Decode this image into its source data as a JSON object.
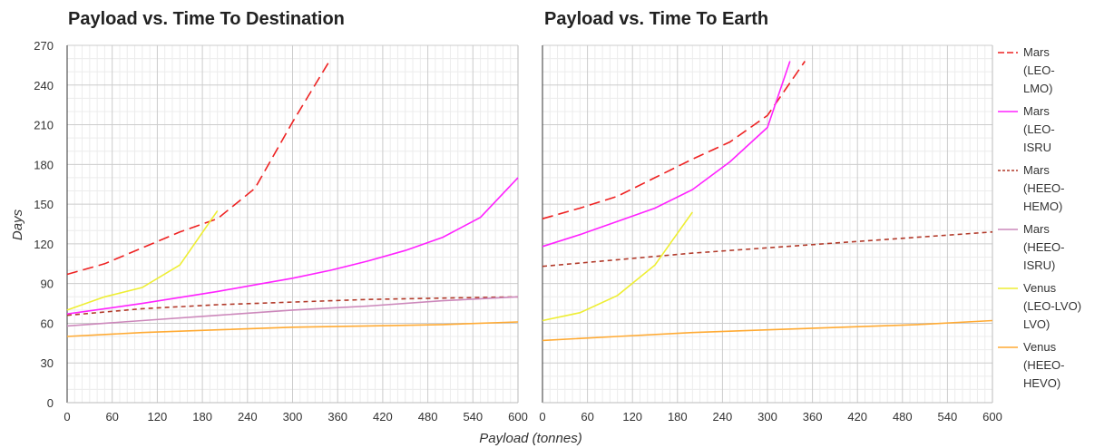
{
  "chart_data": [
    {
      "type": "line",
      "title": "Payload vs. Time To Destination",
      "xlabel": "Payload (tonnes)",
      "ylabel": "Days",
      "xlim": [
        0,
        600
      ],
      "ylim": [
        0,
        270
      ],
      "xticks": [
        "0",
        "60",
        "120",
        "180",
        "240",
        "300",
        "360",
        "420",
        "480",
        "540",
        "600"
      ],
      "yticks": [
        "0",
        "30",
        "60",
        "90",
        "120",
        "150",
        "180",
        "210",
        "240",
        "270"
      ],
      "grid": true,
      "series": [
        {
          "name": "Mars (LEO-LMO)",
          "color": "#ee2222",
          "dash": "long-dash",
          "x": [
            0,
            50,
            100,
            150,
            200,
            250,
            300,
            350
          ],
          "y": [
            97,
            105,
            117,
            129,
            139,
            162,
            212,
            259
          ]
        },
        {
          "name": "Mars (LEO-ISRU",
          "color": "#ff22ff",
          "dash": "solid",
          "x": [
            0,
            100,
            200,
            250,
            300,
            350,
            400,
            450,
            500,
            550,
            600
          ],
          "y": [
            67,
            75,
            84,
            89,
            94,
            100,
            107,
            115,
            125,
            140,
            170
          ]
        },
        {
          "name": "Mars (HEEO-HEMO)",
          "color": "#b23a2a",
          "dash": "short-dash",
          "x": [
            0,
            100,
            200,
            300,
            400,
            500,
            600
          ],
          "y": [
            66,
            71,
            74,
            76,
            78,
            79,
            80
          ]
        },
        {
          "name": "Mars (HEEO-ISRU)",
          "color": "#cc88bb",
          "dash": "solid",
          "x": [
            0,
            100,
            200,
            300,
            400,
            500,
            600
          ],
          "y": [
            58,
            62,
            66,
            70,
            73,
            77,
            80
          ]
        },
        {
          "name": "Venus (LEO-LVO) LVO)",
          "color": "#eeee33",
          "dash": "solid",
          "x": [
            0,
            50,
            100,
            150,
            200
          ],
          "y": [
            70,
            80,
            87,
            104,
            145
          ]
        },
        {
          "name": "Venus (HEEO-HEVO)",
          "color": "#ffaa33",
          "dash": "solid",
          "x": [
            0,
            100,
            200,
            300,
            400,
            500,
            600
          ],
          "y": [
            50,
            53,
            55,
            57,
            58,
            59,
            61
          ]
        }
      ]
    },
    {
      "type": "line",
      "title": "Payload vs. Time To Earth",
      "xlabel": "Payload (tonnes)",
      "ylabel": "",
      "xlim": [
        0,
        600
      ],
      "ylim": [
        0,
        270
      ],
      "xticks": [
        "0",
        "60",
        "120",
        "180",
        "240",
        "300",
        "360",
        "420",
        "480",
        "540",
        "600"
      ],
      "grid": true,
      "series": [
        {
          "name": "Mars (LEO-LMO)",
          "color": "#ee2222",
          "dash": "long-dash",
          "x": [
            0,
            50,
            100,
            150,
            200,
            250,
            300,
            350
          ],
          "y": [
            139,
            147,
            156,
            170,
            184,
            197,
            217,
            258
          ]
        },
        {
          "name": "Mars (LEO-ISRU",
          "color": "#ff22ff",
          "dash": "solid",
          "x": [
            0,
            50,
            100,
            150,
            200,
            250,
            300,
            330
          ],
          "y": [
            118,
            127,
            137,
            147,
            161,
            182,
            208,
            258
          ]
        },
        {
          "name": "Mars (HEEO-HEMO)",
          "color": "#b23a2a",
          "dash": "short-dash",
          "x": [
            0,
            100,
            200,
            300,
            400,
            500,
            600
          ],
          "y": [
            103,
            108,
            113,
            117,
            121,
            125,
            129
          ]
        },
        {
          "name": "Venus (LEO-LVO) LVO)",
          "color": "#eeee33",
          "dash": "solid",
          "x": [
            0,
            50,
            100,
            150,
            200
          ],
          "y": [
            62,
            68,
            81,
            104,
            144
          ]
        },
        {
          "name": "Venus (HEEO-HEVO)",
          "color": "#ffaa33",
          "dash": "solid",
          "x": [
            0,
            100,
            200,
            300,
            400,
            500,
            600
          ],
          "y": [
            47,
            50,
            53,
            55,
            57,
            59,
            62
          ]
        }
      ]
    }
  ],
  "legend": [
    {
      "lines": [
        "Mars",
        "(LEO-",
        "LMO)"
      ],
      "color": "#ee2222",
      "dash": "long-dash"
    },
    {
      "lines": [
        "Mars",
        "(LEO-",
        "ISRU"
      ],
      "color": "#ff22ff",
      "dash": "solid"
    },
    {
      "lines": [
        "Mars",
        "(HEEO-",
        "HEMO)"
      ],
      "color": "#b23a2a",
      "dash": "short-dash"
    },
    {
      "lines": [
        "Mars",
        "(HEEO-",
        "ISRU)"
      ],
      "color": "#cc88bb",
      "dash": "solid"
    },
    {
      "lines": [
        "Venus",
        "(LEO-LVO)",
        "LVO)"
      ],
      "color": "#eeee33",
      "dash": "solid"
    },
    {
      "lines": [
        "Venus",
        "(HEEO-",
        "HEVO)"
      ],
      "color": "#ffaa33",
      "dash": "solid"
    }
  ]
}
